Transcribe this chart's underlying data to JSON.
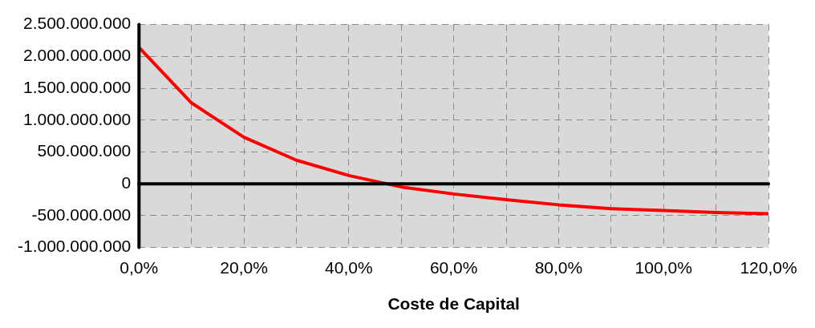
{
  "chart_data": {
    "type": "line",
    "xlabel": "Coste de Capital",
    "x": [
      0,
      10,
      20,
      30,
      40,
      50,
      60,
      70,
      80,
      90,
      100,
      110,
      120
    ],
    "series": [
      {
        "color": "#ff0000",
        "values": [
          2140000000,
          1270000000,
          730000000,
          370000000,
          130000000,
          -50000000,
          -160000000,
          -250000000,
          -330000000,
          -390000000,
          -420000000,
          -450000000,
          -470000000
        ]
      }
    ],
    "xlim": [
      0,
      120
    ],
    "xticks": [
      {
        "value": 0,
        "label": "0,0%"
      },
      {
        "value": 10,
        "label": null
      },
      {
        "value": 20,
        "label": "20,0%"
      },
      {
        "value": 30,
        "label": null
      },
      {
        "value": 40,
        "label": "40,0%"
      },
      {
        "value": 50,
        "label": null
      },
      {
        "value": 60,
        "label": "60,0%"
      },
      {
        "value": 70,
        "label": null
      },
      {
        "value": 80,
        "label": "80,0%"
      },
      {
        "value": 90,
        "label": null
      },
      {
        "value": 100,
        "label": "100,0%"
      },
      {
        "value": 110,
        "label": null
      },
      {
        "value": 120,
        "label": "120,0%"
      }
    ],
    "ylim": [
      -1000000000,
      2500000000
    ],
    "yticks": [
      {
        "value": -1000000000,
        "label": "-1.000.000.000"
      },
      {
        "value": -500000000,
        "label": "-500.000.000"
      },
      {
        "value": 0,
        "label": "0"
      },
      {
        "value": 500000000,
        "label": "500.000.000"
      },
      {
        "value": 1000000000,
        "label": "1.000.000.000"
      },
      {
        "value": 1500000000,
        "label": "1.500.000.000"
      },
      {
        "value": 2000000000,
        "label": "2.000.000.000"
      },
      {
        "value": 2500000000,
        "label": "2.500.000.000"
      }
    ],
    "grid": true,
    "legend": false,
    "marker": "none",
    "line_style": "solid"
  }
}
